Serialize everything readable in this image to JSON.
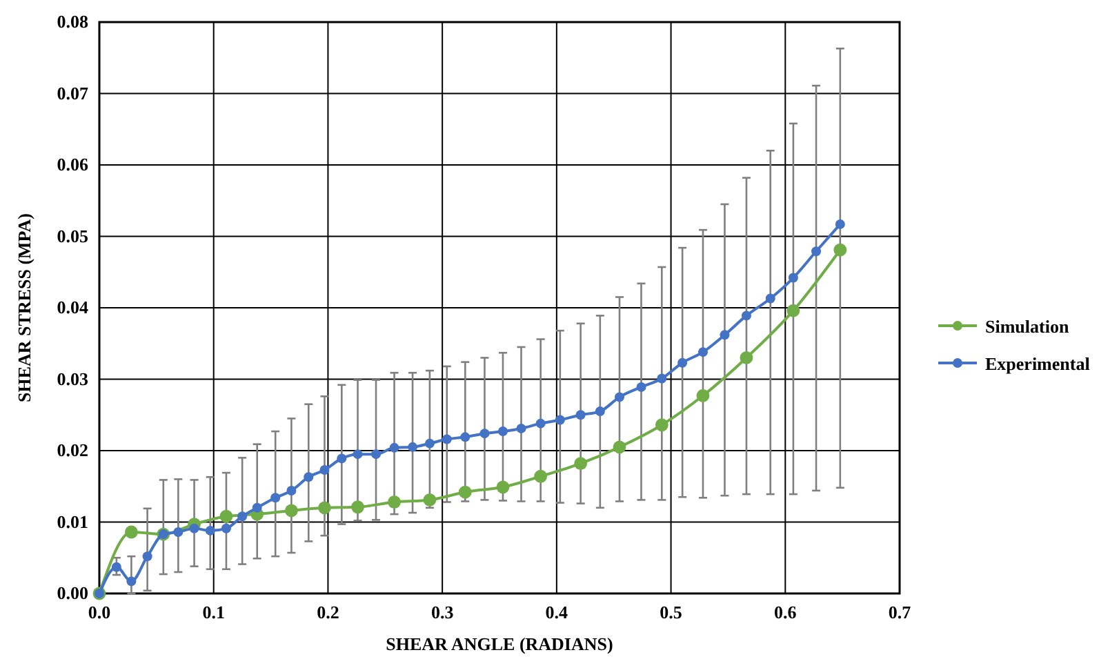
{
  "chart_data": {
    "type": "line",
    "xlabel": "SHEAR ANGLE (RADIANS)",
    "ylabel": "SHEAR STRESS (MPA)",
    "xlim": [
      0,
      0.7
    ],
    "xticks": [
      {
        "value": 0,
        "label": "0.0"
      },
      0.1,
      0.2,
      0.3,
      0.4,
      0.5,
      0.6,
      0.7
    ],
    "ylim": [
      0,
      0.08
    ],
    "yticks": [
      {
        "value": 0,
        "label": "0.00"
      },
      0.01,
      0.02,
      0.03,
      0.04,
      0.05,
      0.06,
      0.07,
      0.08
    ],
    "grid": true,
    "legend": "right",
    "marker": "circle",
    "line_style": "solid",
    "series": [
      {
        "name": "Simulation",
        "color": "#70ad47",
        "x": [
          0,
          0.028,
          0.056,
          0.083,
          0.111,
          0.138,
          0.168,
          0.197,
          0.226,
          0.258,
          0.289,
          0.32,
          0.353,
          0.386,
          0.421,
          0.455,
          0.492,
          0.528,
          0.566,
          0.607,
          0.648
        ],
        "values": [
          0,
          0.0086,
          0.0083,
          0.0097,
          0.0108,
          0.0111,
          0.0116,
          0.012,
          0.0121,
          0.0128,
          0.0131,
          0.0142,
          0.0149,
          0.0164,
          0.0182,
          0.0205,
          0.0236,
          0.0277,
          0.033,
          0.0396,
          0.0481
        ]
      },
      {
        "name": "Experimental",
        "color": "#4472c4",
        "x": [
          0,
          0.015,
          0.028,
          0.042,
          0.056,
          0.069,
          0.083,
          0.097,
          0.111,
          0.125,
          0.138,
          0.154,
          0.168,
          0.183,
          0.197,
          0.212,
          0.226,
          0.242,
          0.258,
          0.274,
          0.289,
          0.304,
          0.32,
          0.337,
          0.353,
          0.369,
          0.386,
          0.403,
          0.421,
          0.438,
          0.455,
          0.474,
          0.492,
          0.51,
          0.528,
          0.547,
          0.566,
          0.587,
          0.607,
          0.627,
          0.648
        ],
        "values": [
          0,
          0.0037,
          0.0017,
          0.0052,
          0.0083,
          0.0086,
          0.0091,
          0.0088,
          0.0091,
          0.0108,
          0.012,
          0.0134,
          0.0144,
          0.0163,
          0.0173,
          0.0189,
          0.0195,
          0.0195,
          0.0204,
          0.0205,
          0.021,
          0.0216,
          0.0219,
          0.0224,
          0.0227,
          0.0231,
          0.0238,
          0.0243,
          0.025,
          0.0255,
          0.0275,
          0.0289,
          0.0301,
          0.0323,
          0.0338,
          0.0362,
          0.0389,
          0.0413,
          0.0442,
          0.0479,
          0.0517
        ],
        "errors": [
          null,
          [
            0.0026,
            0.005
          ],
          [
            0,
            0.0052
          ],
          [
            0.0004,
            0.0119
          ],
          [
            0.0027,
            0.0159
          ],
          [
            0.003,
            0.016
          ],
          [
            0.0038,
            0.0159
          ],
          [
            0.0034,
            0.0163
          ],
          [
            0.0034,
            0.0169
          ],
          [
            0.0041,
            0.019
          ],
          [
            0.0049,
            0.0209
          ],
          [
            0.0052,
            0.0227
          ],
          [
            0.0057,
            0.0245
          ],
          [
            0.0073,
            0.0265
          ],
          [
            0.0081,
            0.0276
          ],
          [
            0.0097,
            0.0292
          ],
          [
            0.0102,
            0.0299
          ],
          [
            0.0103,
            0.0299
          ],
          [
            0.0111,
            0.0309
          ],
          [
            0.0113,
            0.0309
          ],
          [
            0.012,
            0.0312
          ],
          [
            0.0128,
            0.0318
          ],
          [
            0.0129,
            0.0324
          ],
          [
            0.0131,
            0.033
          ],
          [
            0.013,
            0.0337
          ],
          [
            0.0129,
            0.0345
          ],
          [
            0.0129,
            0.0356
          ],
          [
            0.0127,
            0.0368
          ],
          [
            0.0126,
            0.0378
          ],
          [
            0.012,
            0.0389
          ],
          [
            0.0129,
            0.0415
          ],
          [
            0.0131,
            0.0434
          ],
          [
            0.0131,
            0.0457
          ],
          [
            0.0135,
            0.0484
          ],
          [
            0.0134,
            0.0509
          ],
          [
            0.0137,
            0.0545
          ],
          [
            0.0139,
            0.0582
          ],
          [
            0.0139,
            0.062
          ],
          [
            0.0139,
            0.0658
          ],
          [
            0.0144,
            0.0711
          ],
          [
            0.0148,
            0.0763
          ]
        ]
      }
    ]
  }
}
